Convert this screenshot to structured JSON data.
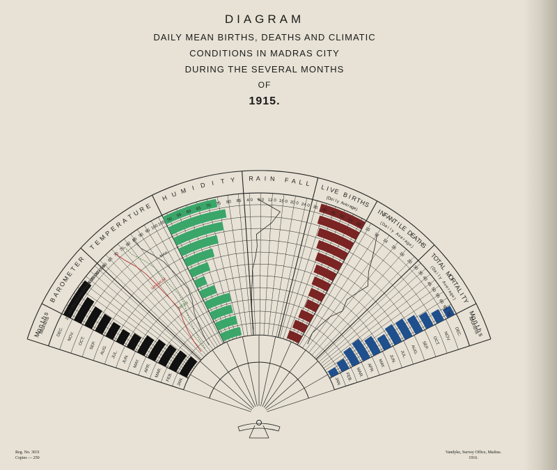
{
  "title": {
    "line1": "DIAGRAM",
    "line2": "DAILY MEAN BIRTHS, DEATHS AND CLIMATIC",
    "line3": "CONDITIONS IN MADRAS CITY",
    "line4": "DURING THE SEVERAL MONTHS",
    "line5": "OF",
    "line6": "1915."
  },
  "footer": {
    "reg": "Reg. No. 3031",
    "copies": "Copies — 250",
    "printer": "Vandyke, Survey Office, Madras.",
    "year": "1916."
  },
  "colors": {
    "barometer": "#111111",
    "humidity": "#3aa66a",
    "births": "#7a2424",
    "mortality": "#1f4f8c",
    "ink": "#222222",
    "temp_max": "#444444",
    "temp_min": "#b03030",
    "temp_mean": "#4a7a4a"
  },
  "chart_data": {
    "type": "bar",
    "layout": "fan",
    "panels": {
      "months": {
        "label": "Months"
      },
      "barometer": {
        "label": "BAROMETER",
        "ticks": [
          "29·650",
          "29·700",
          "29·750",
          "29·800",
          "29·850",
          "29·900",
          "29·950",
          "30·000",
          "30·050"
        ],
        "months": [
          "JAN.",
          "FEB.",
          "MAR.",
          "APR.",
          "MAY.",
          "JUN.",
          "JUL.",
          "AUG.",
          "SEP.",
          "OCT.",
          "NOV.",
          "DEC."
        ],
        "values": [
          30.02,
          29.98,
          29.95,
          29.91,
          29.86,
          29.79,
          29.76,
          29.77,
          29.79,
          29.8,
          29.83,
          29.93
        ]
      },
      "temperature": {
        "label": "TEMPERATURE",
        "ticks": [
          "60",
          "65",
          "70",
          "75",
          "80",
          "85",
          "90",
          "95",
          "100",
          "105"
        ],
        "legend": [
          "MAX.",
          "MINIMUM",
          "MEAN"
        ],
        "series": [
          {
            "name": "MAX.",
            "values": [
              84,
              86,
              89,
              92,
              97,
              99,
              97,
              95,
              93,
              89,
              85,
              84
            ]
          },
          {
            "name": "MINIMUM",
            "values": [
              68,
              70,
              73,
              77,
              81,
              80,
              79,
              78,
              77,
              75,
              72,
              70
            ]
          },
          {
            "name": "MEAN",
            "values": [
              76,
              78,
              81,
              84,
              88,
              89,
              87,
              86,
              85,
              82,
              78,
              77
            ]
          }
        ]
      },
      "humidity": {
        "label": "HUMIDITY",
        "ticks": [
          "50",
          "55",
          "60",
          "65",
          "70",
          "75",
          "80",
          "85"
        ],
        "values": [
          73,
          71,
          69,
          70,
          59,
          54,
          60,
          66,
          71,
          76,
          79,
          75
        ]
      },
      "rainfall": {
        "label": "RAIN FALL",
        "ticks": [
          "4·0",
          "8·0",
          "12·0",
          "16·0",
          "20·0",
          "24·0"
        ],
        "values": [
          0.4,
          0.1,
          0.2,
          0.6,
          1.5,
          2.0,
          3.8,
          4.9,
          4.6,
          11.2,
          14.4,
          5.1
        ]
      },
      "births": {
        "label": "LIVE BIRTHS",
        "sublabel": "(Daily Average)",
        "ticks": [
          "35",
          "40",
          "45",
          "50",
          "55",
          "60"
        ],
        "values": [
          48,
          46,
          44,
          42,
          43,
          44,
          46,
          48,
          50,
          52,
          54,
          55
        ]
      },
      "infantile_deaths": {
        "label": "INFANTILE DEATHS",
        "sublabel": "(Daily Average)",
        "ticks": [
          "10",
          "12",
          "14",
          "16",
          "18",
          "20"
        ],
        "values": [
          13,
          12,
          13,
          14,
          16,
          15,
          16,
          17,
          15,
          14,
          13,
          12
        ]
      },
      "mortality": {
        "label": "TOTAL MORTALITY",
        "sublabel": "(Daily Average)",
        "ticks": [
          "30",
          "35",
          "40",
          "45",
          "50",
          "55",
          "60",
          "65",
          "70"
        ],
        "values": [
          38,
          42,
          50,
          52,
          46,
          40,
          44,
          43,
          40,
          37,
          34,
          32
        ]
      },
      "months_right": {
        "label": "Months",
        "months": [
          "JAN.",
          "FEB.",
          "MAR.",
          "APR.",
          "MAY.",
          "JUN.",
          "JUL.",
          "AUG.",
          "SEP.",
          "OCT.",
          "NOV.",
          "DEC."
        ]
      }
    }
  }
}
